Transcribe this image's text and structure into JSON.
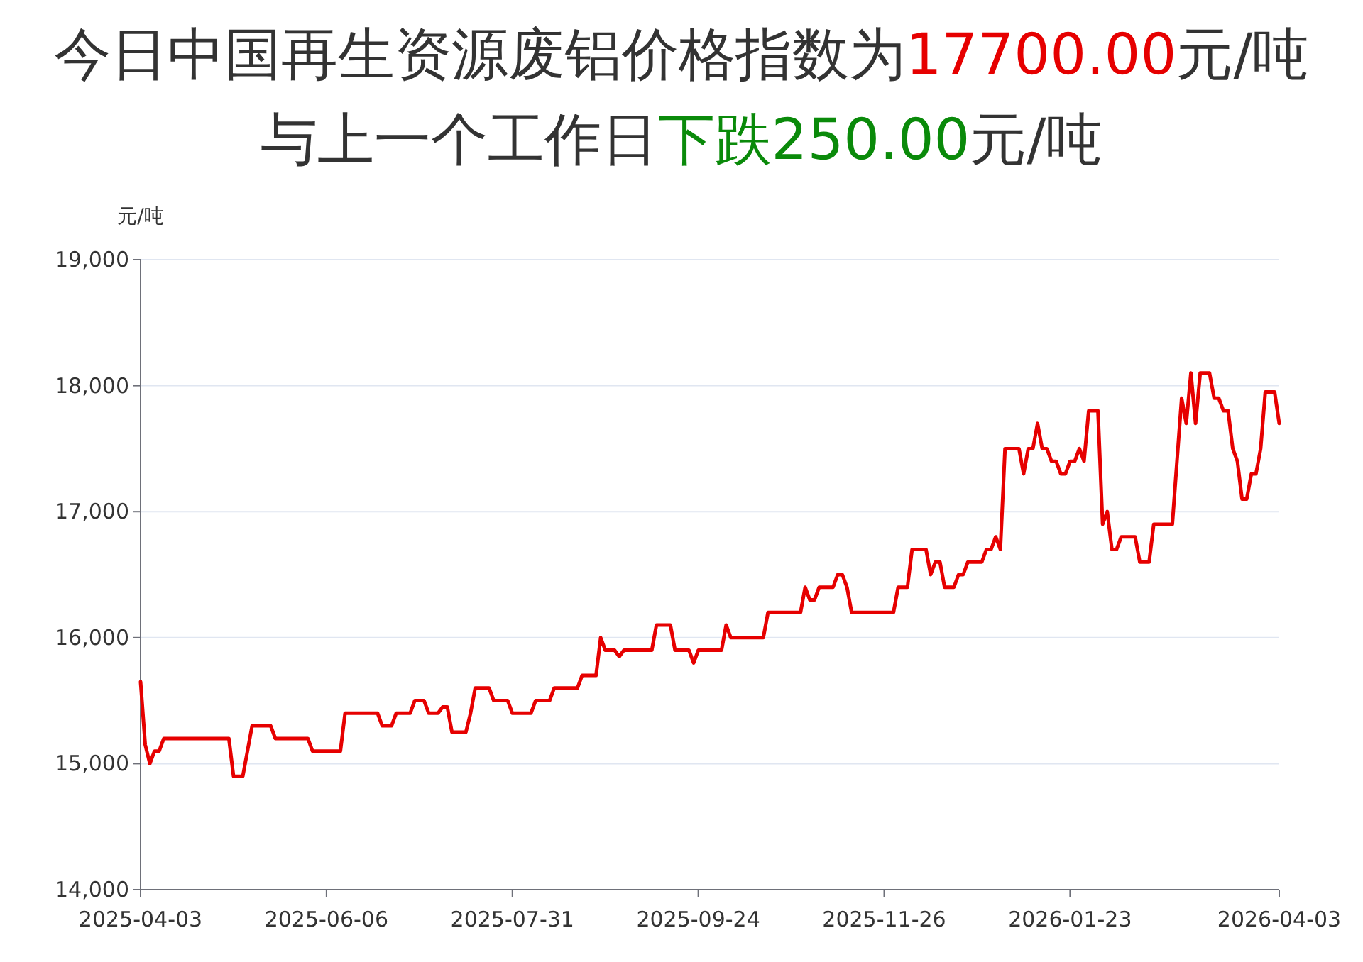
{
  "chart_data": {
    "type": "line",
    "title": "今日中国再生资源废铝价格指数为17700.00元/吨",
    "subtitle": "与上一个工作日下跌250.00元/吨",
    "ylabel": "元/吨",
    "categories": [
      "2025-04-03",
      null,
      null,
      null,
      null,
      null,
      null,
      null,
      null,
      null,
      null,
      null,
      null,
      null,
      null,
      null,
      null,
      null,
      null,
      null,
      null,
      null,
      null,
      null,
      null,
      null,
      null,
      null,
      null,
      null,
      null,
      null,
      null,
      null,
      null,
      null,
      null,
      null,
      null,
      null,
      "2025-06-06",
      null,
      null,
      null,
      null,
      null,
      null,
      null,
      null,
      null,
      null,
      null,
      null,
      null,
      null,
      null,
      null,
      null,
      null,
      null,
      null,
      null,
      null,
      null,
      null,
      null,
      null,
      null,
      null,
      null,
      null,
      null,
      null,
      null,
      null,
      null,
      null,
      null,
      null,
      null,
      "2025-07-31",
      null,
      null,
      null,
      null,
      null,
      null,
      null,
      null,
      null,
      null,
      null,
      null,
      null,
      null,
      null,
      null,
      null,
      null,
      null,
      null,
      null,
      null,
      null,
      null,
      null,
      null,
      null,
      null,
      null,
      null,
      null,
      null,
      null,
      null,
      null,
      null,
      null,
      null,
      null,
      "2025-09-24",
      null,
      null,
      null,
      null,
      null,
      null,
      null,
      null,
      null,
      null,
      null,
      null,
      null,
      null,
      null,
      null,
      null,
      null,
      null,
      null,
      null,
      null,
      null,
      null,
      null,
      null,
      null,
      null,
      null,
      null,
      null,
      null,
      null,
      null,
      null,
      null,
      null,
      null,
      null,
      "2025-11-26",
      null,
      null,
      null,
      null,
      null,
      null,
      null,
      null,
      null,
      null,
      null,
      null,
      null,
      null,
      null,
      null,
      null,
      null,
      null,
      null,
      null,
      null,
      null,
      null,
      null,
      null,
      null,
      null,
      null,
      null,
      null,
      null,
      null,
      null,
      null,
      null,
      null,
      null,
      null,
      "2026-01-23",
      null,
      null,
      null,
      null,
      null,
      null,
      null,
      null,
      null,
      null,
      null,
      null,
      null,
      null,
      null,
      null,
      null,
      null,
      null,
      null,
      null,
      null,
      null,
      null,
      null,
      null,
      null,
      null,
      null,
      null,
      null,
      null,
      null,
      null,
      null,
      null,
      null,
      null,
      null,
      null,
      null,
      null,
      null,
      null,
      "2026-04-03"
    ],
    "series": [
      {
        "color": "#e60000",
        "values": [
          15650,
          15150,
          15000,
          15100,
          15100,
          15200,
          15200,
          15200,
          15200,
          15200,
          15200,
          15200,
          15200,
          15200,
          15200,
          15200,
          15200,
          15200,
          15200,
          15200,
          14900,
          14900,
          14900,
          15100,
          15300,
          15300,
          15300,
          15300,
          15300,
          15200,
          15200,
          15200,
          15200,
          15200,
          15200,
          15200,
          15200,
          15100,
          15100,
          15100,
          15100,
          15100,
          15100,
          15100,
          15400,
          15400,
          15400,
          15400,
          15400,
          15400,
          15400,
          15400,
          15300,
          15300,
          15300,
          15400,
          15400,
          15400,
          15400,
          15500,
          15500,
          15500,
          15400,
          15400,
          15400,
          15450,
          15450,
          15250,
          15250,
          15250,
          15250,
          15400,
          15600,
          15600,
          15600,
          15600,
          15500,
          15500,
          15500,
          15500,
          15400,
          15400,
          15400,
          15400,
          15400,
          15500,
          15500,
          15500,
          15500,
          15600,
          15600,
          15600,
          15600,
          15600,
          15600,
          15700,
          15700,
          15700,
          15700,
          16000,
          15900,
          15900,
          15900,
          15850,
          15900,
          15900,
          15900,
          15900,
          15900,
          15900,
          15900,
          16100,
          16100,
          16100,
          16100,
          15900,
          15900,
          15900,
          15900,
          15800,
          15900,
          15900,
          15900,
          15900,
          15900,
          15900,
          16100,
          16000,
          16000,
          16000,
          16000,
          16000,
          16000,
          16000,
          16000,
          16200,
          16200,
          16200,
          16200,
          16200,
          16200,
          16200,
          16200,
          16400,
          16300,
          16300,
          16400,
          16400,
          16400,
          16400,
          16500,
          16500,
          16400,
          16200,
          16200,
          16200,
          16200,
          16200,
          16200,
          16200,
          16200,
          16200,
          16200,
          16400,
          16400,
          16400,
          16700,
          16700,
          16700,
          16700,
          16500,
          16600,
          16600,
          16400,
          16400,
          16400,
          16500,
          16500,
          16600,
          16600,
          16600,
          16600,
          16700,
          16700,
          16800,
          16700,
          17500,
          17500,
          17500,
          17500,
          17300,
          17500,
          17500,
          17700,
          17500,
          17500,
          17400,
          17400,
          17300,
          17300,
          17400,
          17400,
          17500,
          17400,
          17800,
          17800,
          17800,
          16900,
          17000,
          16700,
          16700,
          16800,
          16800,
          16800,
          16800,
          16600,
          16600,
          16600,
          16900,
          16900,
          16900,
          16900,
          16900,
          17400,
          17900,
          17700,
          18100,
          17700,
          18100,
          18100,
          18100,
          17900,
          17900,
          17800,
          17800,
          17500,
          17400,
          17100,
          17100,
          17300,
          17300,
          17500,
          17950,
          17950,
          17950,
          17700
        ]
      }
    ],
    "ylim": [
      14000,
      19000
    ],
    "yticks": [
      {
        "value": 14000,
        "label": "14,000"
      },
      {
        "value": 15000,
        "label": "15,000"
      },
      {
        "value": 16000,
        "label": "16,000"
      },
      {
        "value": 17000,
        "label": "17,000"
      },
      {
        "value": 18000,
        "label": "18,000"
      },
      {
        "value": 19000,
        "label": "19,000"
      }
    ],
    "grid": "y",
    "marker": "none",
    "line_style": "solid"
  }
}
